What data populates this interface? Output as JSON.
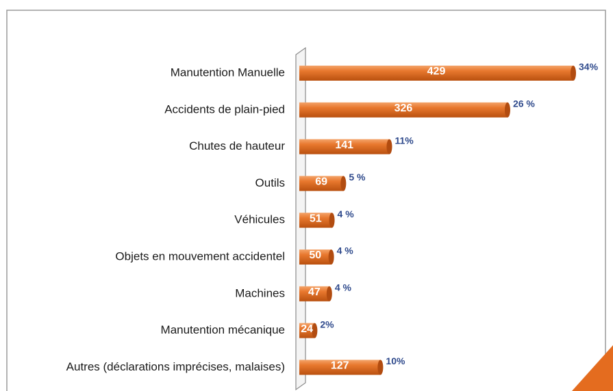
{
  "chart_data": {
    "type": "bar",
    "orientation": "horizontal",
    "categories": [
      "Manutention Manuelle",
      "Accidents de plain-pied",
      "Chutes de hauteur",
      "Outils",
      "Véhicules",
      "Objets en mouvement accidentel",
      "Machines",
      "Manutention mécanique",
      "Autres (déclarations imprécises, malaises)"
    ],
    "values": [
      429,
      326,
      141,
      69,
      51,
      50,
      47,
      24,
      127
    ],
    "percents": [
      34,
      26,
      11,
      5,
      4,
      4,
      4,
      2,
      10
    ],
    "percent_labels": [
      "34%",
      "26 %",
      "11%",
      "5 %",
      "4 %",
      "4 %",
      "4 %",
      "2%",
      "10%"
    ],
    "color": "#e46c1f"
  }
}
